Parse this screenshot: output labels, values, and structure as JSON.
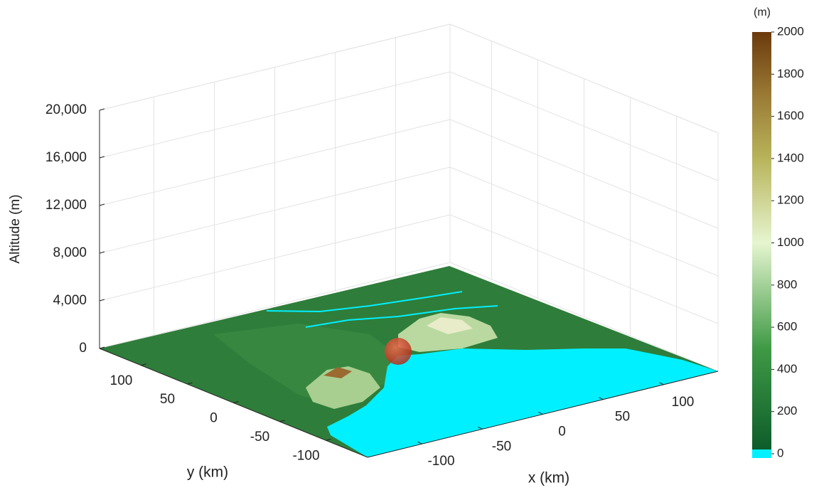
{
  "chart_data": {
    "type": "surface3d",
    "xlabel": "x (km)",
    "ylabel": "y (km)",
    "zlabel": "Altitude (m)",
    "xlim": [
      -145,
      145
    ],
    "ylim": [
      -145,
      145
    ],
    "zlim": [
      0,
      20000
    ],
    "xticks": [
      -100,
      -50,
      0,
      50,
      100
    ],
    "yticks": [
      -100,
      -50,
      0,
      50,
      100
    ],
    "zticks": [
      0,
      {
        "value": 4000,
        "label": "4,000"
      },
      {
        "value": 8000,
        "label": "8,000"
      },
      {
        "value": 12000,
        "label": "12,000"
      },
      {
        "value": 16000,
        "label": "16,000"
      },
      {
        "value": 20000,
        "label": "20,000"
      }
    ],
    "grid": true,
    "colorbar": {
      "label": "(m)",
      "clim": [
        0,
        2000
      ],
      "ticks": [
        0,
        200,
        400,
        600,
        800,
        1000,
        1200,
        1400,
        1600,
        1800,
        2000
      ]
    }
  }
}
